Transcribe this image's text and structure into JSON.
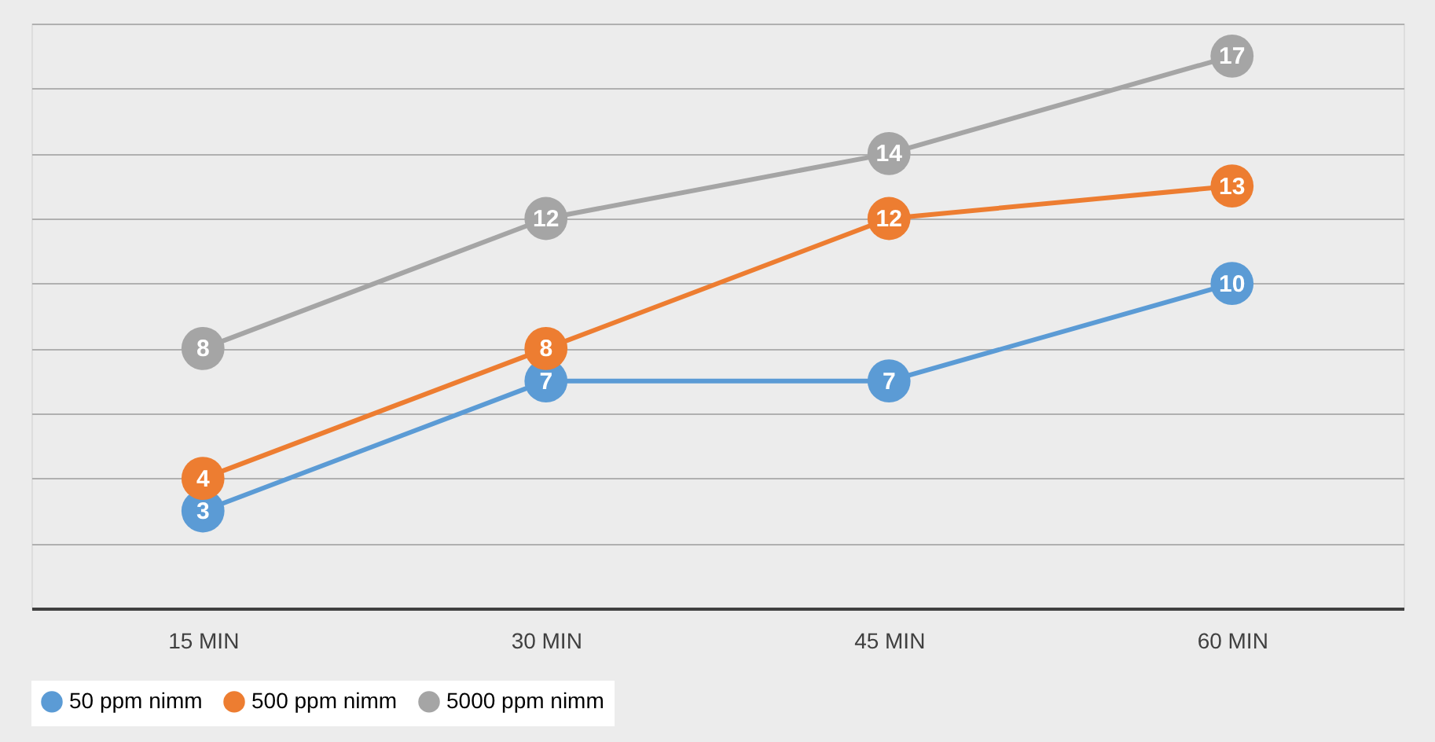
{
  "chart_data": {
    "type": "line",
    "categories": [
      "15 MIN",
      "30 MIN",
      "45 MIN",
      "60 MIN"
    ],
    "series": [
      {
        "name": "50 ppm nimm",
        "color": "#5b9bd5",
        "values": [
          3,
          7,
          7,
          10
        ]
      },
      {
        "name": "500 ppm nimm",
        "color": "#ed7d31",
        "values": [
          4,
          8,
          12,
          13
        ]
      },
      {
        "name": "5000 ppm nimm",
        "color": "#a5a5a5",
        "values": [
          8,
          12,
          14,
          17
        ]
      }
    ],
    "ylim": [
      0,
      18
    ],
    "yticks": [
      {
        "value": 0,
        "label": null
      },
      {
        "value": 2,
        "label": null
      },
      {
        "value": 4,
        "label": null
      },
      {
        "value": 6,
        "label": null
      },
      {
        "value": 8,
        "label": null
      },
      {
        "value": 10,
        "label": null
      },
      {
        "value": 12,
        "label": null
      },
      {
        "value": 14,
        "label": null
      },
      {
        "value": 16,
        "label": null
      },
      {
        "value": 18,
        "label": null
      }
    ],
    "grid": "y",
    "legend": "bottom",
    "marker": "circle",
    "line_style": "solid",
    "data_labels": true,
    "tick_labels": "x"
  }
}
